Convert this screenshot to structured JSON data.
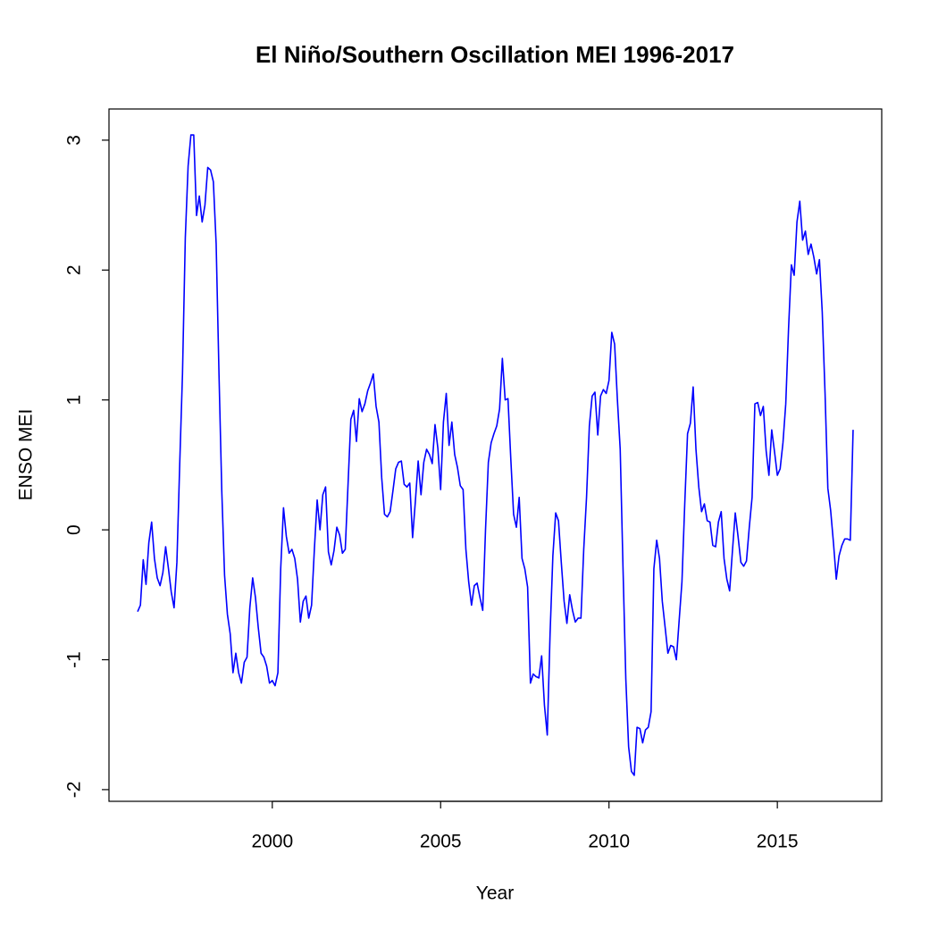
{
  "chart_data": {
    "type": "line",
    "title": "El Niño/Southern Oscillation MEI 1996-2017",
    "x_label": "Year",
    "y_label": "ENSO MEI",
    "xlim": [
      1995.15,
      2018.1
    ],
    "ylim": [
      -2.09,
      3.24
    ],
    "xticks": [
      2000,
      2005,
      2010,
      2015
    ],
    "yticks": [
      -2,
      -1,
      0,
      1,
      2,
      3
    ],
    "x": [
      1996,
      1996.083,
      1996.167,
      1996.25,
      1996.333,
      1996.417,
      1996.5,
      1996.583,
      1996.667,
      1996.75,
      1996.833,
      1996.917,
      1997,
      1997.083,
      1997.167,
      1997.25,
      1997.333,
      1997.417,
      1997.5,
      1997.583,
      1997.667,
      1997.75,
      1997.833,
      1997.917,
      1998,
      1998.083,
      1998.167,
      1998.25,
      1998.333,
      1998.417,
      1998.5,
      1998.583,
      1998.667,
      1998.75,
      1998.833,
      1998.917,
      1999,
      1999.083,
      1999.167,
      1999.25,
      1999.333,
      1999.417,
      1999.5,
      1999.583,
      1999.667,
      1999.75,
      1999.833,
      1999.917,
      2000,
      2000.083,
      2000.167,
      2000.25,
      2000.333,
      2000.417,
      2000.5,
      2000.583,
      2000.667,
      2000.75,
      2000.833,
      2000.917,
      2001,
      2001.083,
      2001.167,
      2001.25,
      2001.333,
      2001.417,
      2001.5,
      2001.583,
      2001.667,
      2001.75,
      2001.833,
      2001.917,
      2002,
      2002.083,
      2002.167,
      2002.25,
      2002.333,
      2002.417,
      2002.5,
      2002.583,
      2002.667,
      2002.75,
      2002.833,
      2002.917,
      2003,
      2003.083,
      2003.167,
      2003.25,
      2003.333,
      2003.417,
      2003.5,
      2003.583,
      2003.667,
      2003.75,
      2003.833,
      2003.917,
      2004,
      2004.083,
      2004.167,
      2004.25,
      2004.333,
      2004.417,
      2004.5,
      2004.583,
      2004.667,
      2004.75,
      2004.833,
      2004.917,
      2005,
      2005.083,
      2005.167,
      2005.25,
      2005.333,
      2005.417,
      2005.5,
      2005.583,
      2005.667,
      2005.75,
      2005.833,
      2005.917,
      2006,
      2006.083,
      2006.167,
      2006.25,
      2006.333,
      2006.417,
      2006.5,
      2006.583,
      2006.667,
      2006.75,
      2006.833,
      2006.917,
      2007,
      2007.083,
      2007.167,
      2007.25,
      2007.333,
      2007.417,
      2007.5,
      2007.583,
      2007.667,
      2007.75,
      2007.833,
      2007.917,
      2008,
      2008.083,
      2008.167,
      2008.25,
      2008.333,
      2008.417,
      2008.5,
      2008.583,
      2008.667,
      2008.75,
      2008.833,
      2008.917,
      2009,
      2009.083,
      2009.167,
      2009.25,
      2009.333,
      2009.417,
      2009.5,
      2009.583,
      2009.667,
      2009.75,
      2009.833,
      2009.917,
      2010,
      2010.083,
      2010.167,
      2010.25,
      2010.333,
      2010.417,
      2010.5,
      2010.583,
      2010.667,
      2010.75,
      2010.833,
      2010.917,
      2011,
      2011.083,
      2011.167,
      2011.25,
      2011.333,
      2011.417,
      2011.5,
      2011.583,
      2011.667,
      2011.75,
      2011.833,
      2011.917,
      2012,
      2012.083,
      2012.167,
      2012.25,
      2012.333,
      2012.417,
      2012.5,
      2012.583,
      2012.667,
      2012.75,
      2012.833,
      2012.917,
      2013,
      2013.083,
      2013.167,
      2013.25,
      2013.333,
      2013.417,
      2013.5,
      2013.583,
      2013.667,
      2013.75,
      2013.833,
      2013.917,
      2014,
      2014.083,
      2014.167,
      2014.25,
      2014.333,
      2014.417,
      2014.5,
      2014.583,
      2014.667,
      2014.75,
      2014.833,
      2014.917,
      2015,
      2015.083,
      2015.167,
      2015.25,
      2015.333,
      2015.417,
      2015.5,
      2015.583,
      2015.667,
      2015.75,
      2015.833,
      2015.917,
      2016,
      2016.083,
      2016.167,
      2016.25,
      2016.333,
      2016.417,
      2016.5,
      2016.583,
      2016.667,
      2016.75,
      2016.833,
      2016.917,
      2017,
      2017.083,
      2017.167,
      2017.25
    ],
    "series": [
      {
        "color": "#0000ff",
        "values": [
          -0.63,
          -0.58,
          -0.23,
          -0.42,
          -0.1,
          0.06,
          -0.22,
          -0.37,
          -0.43,
          -0.33,
          -0.13,
          -0.3,
          -0.48,
          -0.6,
          -0.25,
          0.5,
          1.2,
          2.25,
          2.8,
          3.04,
          3.04,
          2.42,
          2.57,
          2.37,
          2.5,
          2.79,
          2.77,
          2.68,
          2.2,
          1.2,
          0.3,
          -0.35,
          -0.65,
          -0.8,
          -1.1,
          -0.95,
          -1.1,
          -1.18,
          -1.02,
          -0.98,
          -0.6,
          -0.37,
          -0.52,
          -0.75,
          -0.95,
          -0.98,
          -1.05,
          -1.18,
          -1.16,
          -1.2,
          -1.1,
          -0.3,
          0.17,
          -0.05,
          -0.18,
          -0.15,
          -0.22,
          -0.38,
          -0.71,
          -0.55,
          -0.51,
          -0.68,
          -0.58,
          -0.15,
          0.23,
          0.0,
          0.27,
          0.33,
          -0.17,
          -0.27,
          -0.16,
          0.02,
          -0.04,
          -0.18,
          -0.15,
          0.35,
          0.85,
          0.92,
          0.68,
          1.01,
          0.91,
          0.97,
          1.07,
          1.13,
          1.2,
          0.95,
          0.83,
          0.4,
          0.12,
          0.1,
          0.14,
          0.3,
          0.47,
          0.52,
          0.53,
          0.35,
          0.33,
          0.36,
          -0.06,
          0.22,
          0.53,
          0.27,
          0.52,
          0.62,
          0.58,
          0.51,
          0.81,
          0.63,
          0.31,
          0.83,
          1.05,
          0.65,
          0.83,
          0.58,
          0.48,
          0.34,
          0.31,
          -0.15,
          -0.4,
          -0.58,
          -0.43,
          -0.41,
          -0.52,
          -0.62,
          0.0,
          0.52,
          0.67,
          0.74,
          0.8,
          0.93,
          1.32,
          1.0,
          1.01,
          0.55,
          0.12,
          0.02,
          0.25,
          -0.22,
          -0.3,
          -0.44,
          -1.18,
          -1.11,
          -1.13,
          -1.14,
          -0.97,
          -1.35,
          -1.58,
          -0.8,
          -0.2,
          0.13,
          0.07,
          -0.25,
          -0.55,
          -0.72,
          -0.5,
          -0.62,
          -0.71,
          -0.68,
          -0.68,
          -0.15,
          0.25,
          0.8,
          1.03,
          1.06,
          0.73,
          1.03,
          1.08,
          1.05,
          1.15,
          1.52,
          1.43,
          1.0,
          0.62,
          -0.3,
          -1.15,
          -1.67,
          -1.86,
          -1.89,
          -1.52,
          -1.53,
          -1.64,
          -1.54,
          -1.52,
          -1.4,
          -0.3,
          -0.08,
          -0.22,
          -0.55,
          -0.75,
          -0.95,
          -0.89,
          -0.9,
          -1.0,
          -0.7,
          -0.4,
          0.2,
          0.74,
          0.82,
          1.1,
          0.62,
          0.33,
          0.14,
          0.2,
          0.07,
          0.06,
          -0.12,
          -0.13,
          0.06,
          0.14,
          -0.22,
          -0.38,
          -0.47,
          -0.16,
          0.13,
          -0.05,
          -0.25,
          -0.28,
          -0.24,
          0.02,
          0.25,
          0.97,
          0.98,
          0.88,
          0.95,
          0.61,
          0.42,
          0.77,
          0.6,
          0.42,
          0.47,
          0.67,
          0.97,
          1.55,
          2.04,
          1.96,
          2.37,
          2.53,
          2.23,
          2.3,
          2.12,
          2.2,
          2.1,
          1.97,
          2.08,
          1.68,
          1.05,
          0.32,
          0.15,
          -0.1,
          -0.38,
          -0.2,
          -0.12,
          -0.07,
          -0.07,
          -0.08,
          0.77
        ]
      }
    ]
  }
}
